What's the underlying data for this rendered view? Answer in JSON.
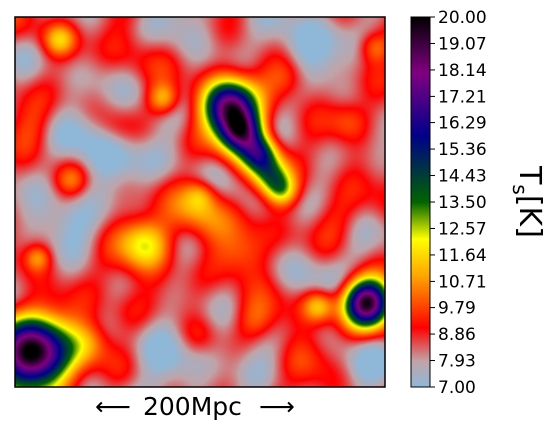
{
  "chart_data": {
    "type": "heatmap",
    "title": "",
    "xlabel": "",
    "ylabel": "",
    "scale_bar": {
      "label": "200Mpc",
      "left_arrow": "⟵",
      "right_arrow": "⟶"
    },
    "colorbar": {
      "label_main": "T",
      "label_sub": "s",
      "label_unit": "[K]",
      "range": [
        7.0,
        20.0
      ],
      "tick_labels": [
        "20.00",
        "19.07",
        "18.14",
        "17.21",
        "16.29",
        "15.36",
        "14.43",
        "13.50",
        "12.57",
        "11.64",
        "10.71",
        "9.79",
        "8.86",
        "7.93",
        "7.00"
      ],
      "tick_values": [
        20.0,
        19.07,
        18.14,
        17.21,
        16.29,
        15.36,
        14.43,
        13.5,
        12.57,
        11.64,
        10.71,
        9.79,
        8.86,
        7.93,
        7.0
      ],
      "colors": [
        "#8fb8d8",
        "#c0a4a8",
        "#ff0000",
        "#ffa500",
        "#ffff00",
        "#006400",
        "#00008b",
        "#800080",
        "#000000"
      ]
    },
    "field": {
      "background_level": 8.5,
      "features": [
        {
          "cx": 0.05,
          "cy": 0.91,
          "r": 0.07,
          "peak": 20.0
        },
        {
          "cx": 0.95,
          "cy": 0.77,
          "r": 0.045,
          "peak": 19.5
        },
        {
          "cx": 0.58,
          "cy": 0.24,
          "r": 0.05,
          "peak": 18.5
        },
        {
          "cx": 0.61,
          "cy": 0.31,
          "r": 0.04,
          "peak": 16.5
        },
        {
          "cx": 0.66,
          "cy": 0.37,
          "r": 0.035,
          "peak": 14.5
        },
        {
          "cx": 0.69,
          "cy": 0.43,
          "r": 0.035,
          "peak": 12.5
        },
        {
          "cx": 0.72,
          "cy": 0.47,
          "r": 0.03,
          "peak": 11.5
        },
        {
          "cx": 0.4,
          "cy": 0.22,
          "r": 0.03,
          "peak": 11.5
        },
        {
          "cx": 0.12,
          "cy": 0.06,
          "r": 0.03,
          "peak": 11.0
        },
        {
          "cx": 0.35,
          "cy": 0.61,
          "r": 0.05,
          "peak": 12.5
        },
        {
          "cx": 0.5,
          "cy": 0.53,
          "r": 0.05,
          "peak": 10.5
        },
        {
          "cx": 0.62,
          "cy": 0.64,
          "r": 0.05,
          "peak": 10.5
        },
        {
          "cx": 0.82,
          "cy": 0.78,
          "r": 0.03,
          "peak": 11.5
        },
        {
          "cx": 0.06,
          "cy": 0.65,
          "r": 0.025,
          "peak": 10.5
        },
        {
          "cx": 0.5,
          "cy": 0.48,
          "r": 0.03,
          "peak": 10.5
        },
        {
          "cx": 0.15,
          "cy": 0.44,
          "r": 0.03,
          "peak": 10.0
        },
        {
          "cx": 0.74,
          "cy": 0.16,
          "r": 0.04,
          "peak": 10.0
        },
        {
          "cx": 0.9,
          "cy": 0.28,
          "r": 0.04,
          "peak": 10.0
        },
        {
          "cx": 0.97,
          "cy": 0.08,
          "r": 0.03,
          "peak": 10.5
        },
        {
          "cx": 0.86,
          "cy": 0.55,
          "r": 0.05,
          "peak": 9.8
        },
        {
          "cx": 0.3,
          "cy": 0.8,
          "r": 0.05,
          "peak": 9.8
        },
        {
          "cx": 0.5,
          "cy": 0.86,
          "r": 0.04,
          "peak": 9.8
        },
        {
          "cx": 0.2,
          "cy": 0.88,
          "r": 0.04,
          "peak": 10.2
        },
        {
          "cx": 0.78,
          "cy": 0.92,
          "r": 0.05,
          "peak": 9.6
        },
        {
          "cx": 0.05,
          "cy": 0.3,
          "r": 0.05,
          "peak": 9.6
        },
        {
          "cx": 0.33,
          "cy": 0.12,
          "r": 0.06,
          "peak": 9.6
        },
        {
          "cx": 0.65,
          "cy": 0.82,
          "r": 0.04,
          "peak": 9.8
        },
        {
          "cx": 0.27,
          "cy": 0.3,
          "r": 0.04,
          "peak": 9.5
        },
        {
          "cx": 0.25,
          "cy": 0.33,
          "r": 0.1,
          "peak": 7.0
        },
        {
          "cx": 0.8,
          "cy": 0.07,
          "r": 0.08,
          "peak": 7.0
        },
        {
          "cx": 0.4,
          "cy": 0.9,
          "r": 0.09,
          "peak": 7.2
        },
        {
          "cx": 0.85,
          "cy": 0.66,
          "r": 0.07,
          "peak": 7.3
        },
        {
          "cx": 0.13,
          "cy": 0.55,
          "r": 0.07,
          "peak": 7.4
        },
        {
          "cx": 0.42,
          "cy": 0.05,
          "r": 0.07,
          "peak": 7.5
        },
        {
          "cx": 0.95,
          "cy": 0.92,
          "r": 0.06,
          "peak": 7.5
        },
        {
          "cx": 0.6,
          "cy": 0.95,
          "r": 0.06,
          "peak": 7.6
        }
      ]
    }
  }
}
